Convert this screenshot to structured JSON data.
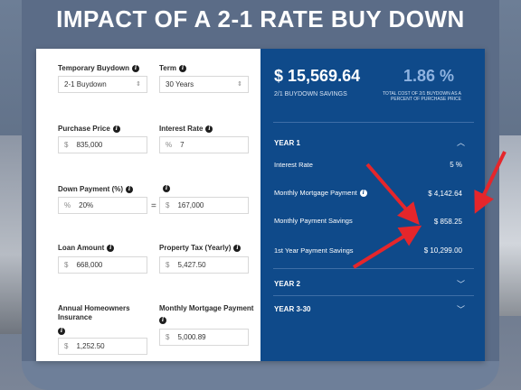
{
  "headline": "IMPACT OF A 2-1 RATE BUY DOWN",
  "form": {
    "temporary_buydown": {
      "label": "Temporary Buydown",
      "value": "2-1 Buydown"
    },
    "term": {
      "label": "Term",
      "value": "30 Years"
    },
    "purchase_price": {
      "label": "Purchase Price",
      "prefix": "$",
      "value": "835,000"
    },
    "interest_rate": {
      "label": "Interest Rate",
      "prefix": "%",
      "value": "7"
    },
    "down_payment_pct": {
      "label": "Down Payment (%)",
      "prefix": "%",
      "value": "20%"
    },
    "equals": "=",
    "down_payment_amt": {
      "prefix": "$",
      "value": "167,000"
    },
    "loan_amount": {
      "label": "Loan Amount",
      "prefix": "$",
      "value": "668,000"
    },
    "property_tax": {
      "label": "Property Tax (Yearly)",
      "prefix": "$",
      "value": "5,427.50"
    },
    "insurance": {
      "label": "Annual Homeowners Insurance",
      "prefix": "$",
      "value": "1,252.50"
    },
    "monthly_payment": {
      "label": "Monthly Mortgage Payment",
      "prefix": "$",
      "value": "5,000.89"
    }
  },
  "results": {
    "savings_value": "$ 15,569.64",
    "savings_caption": "2/1 BUYDOWN SAVINGS",
    "percent_value": "1.86 %",
    "percent_caption": "TOTAL COST OF 2/1 BUYDOWN AS A PERCENT OF PURCHASE PRICE",
    "year1": {
      "title": "YEAR 1",
      "rows": [
        {
          "label": "Interest Rate",
          "value": "5 %"
        },
        {
          "label": "Monthly Mortgage Payment",
          "value": "$ 4,142.64"
        },
        {
          "label": "Monthly Payment Savings",
          "value": "$ 858.25"
        },
        {
          "label": "1st Year Payment Savings",
          "value": "$ 10,299.00"
        }
      ]
    },
    "year2": {
      "title": "YEAR 2"
    },
    "year3": {
      "title": "YEAR 3-30"
    }
  },
  "colors": {
    "panel_blue": "#0f4a8a",
    "frame": "#5b6c87",
    "arrow_red": "#e5262b",
    "accent_percent": "#8fb3e0"
  },
  "icons": [
    "info-icon",
    "chevron-up-icon",
    "chevron-down-icon",
    "select-caret-icon",
    "red-arrow-icon"
  ]
}
